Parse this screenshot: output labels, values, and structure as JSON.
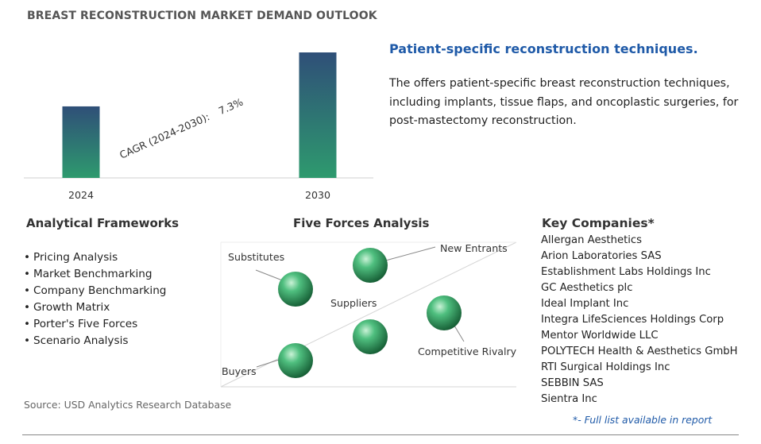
{
  "title": "BREAST RECONSTRUCTION MARKET DEMAND OUTLOOK",
  "chart_data": {
    "type": "bar",
    "categories": [
      "2024",
      "2030"
    ],
    "values": [
      0.57,
      1.0
    ],
    "cagr_label": "CAGR (2024-2030):",
    "cagr_value": "7.3%"
  },
  "right_panel": {
    "heading": "Patient-specific reconstruction techniques.",
    "description": "The offers patient-specific breast reconstruction techniques, including implants, tissue flaps, and oncoplastic surgeries, for post-mastectomy reconstruction."
  },
  "analytical_frameworks": {
    "heading": "Analytical Frameworks",
    "items": [
      "Pricing Analysis",
      "Market Benchmarking",
      "Company Benchmarking",
      "Growth Matrix",
      "Porter's Five Forces",
      "Scenario Analysis"
    ]
  },
  "five_forces": {
    "heading": "Five Forces Analysis",
    "labels": {
      "substitutes": "Substitutes",
      "new_entrants": "New Entrants",
      "suppliers": "Suppliers",
      "competitive_rivalry": "Competitive Rivalry",
      "buyers": "Buyers"
    }
  },
  "key_companies": {
    "heading": "Key Companies*",
    "items": [
      "Allergan Aesthetics",
      "Arion Laboratories SAS",
      "Establishment Labs Holdings Inc",
      "GC Aesthetics plc",
      "Ideal Implant Inc",
      "Integra LifeSciences Holdings Corp",
      "Mentor Worldwide LLC",
      "POLYTECH Health & Aesthetics GmbH",
      "RTI Surgical Holdings Inc",
      "SEBBIN SAS",
      "Sientra Inc"
    ],
    "note": "*- Full list available in report"
  },
  "source": "Source: USD Analytics Research Database",
  "colors": {
    "bar_top": "#2f4f78",
    "bar_bottom": "#2e9a6e",
    "accent_blue": "#1f5aa8",
    "sphere": "#2f9a62"
  }
}
